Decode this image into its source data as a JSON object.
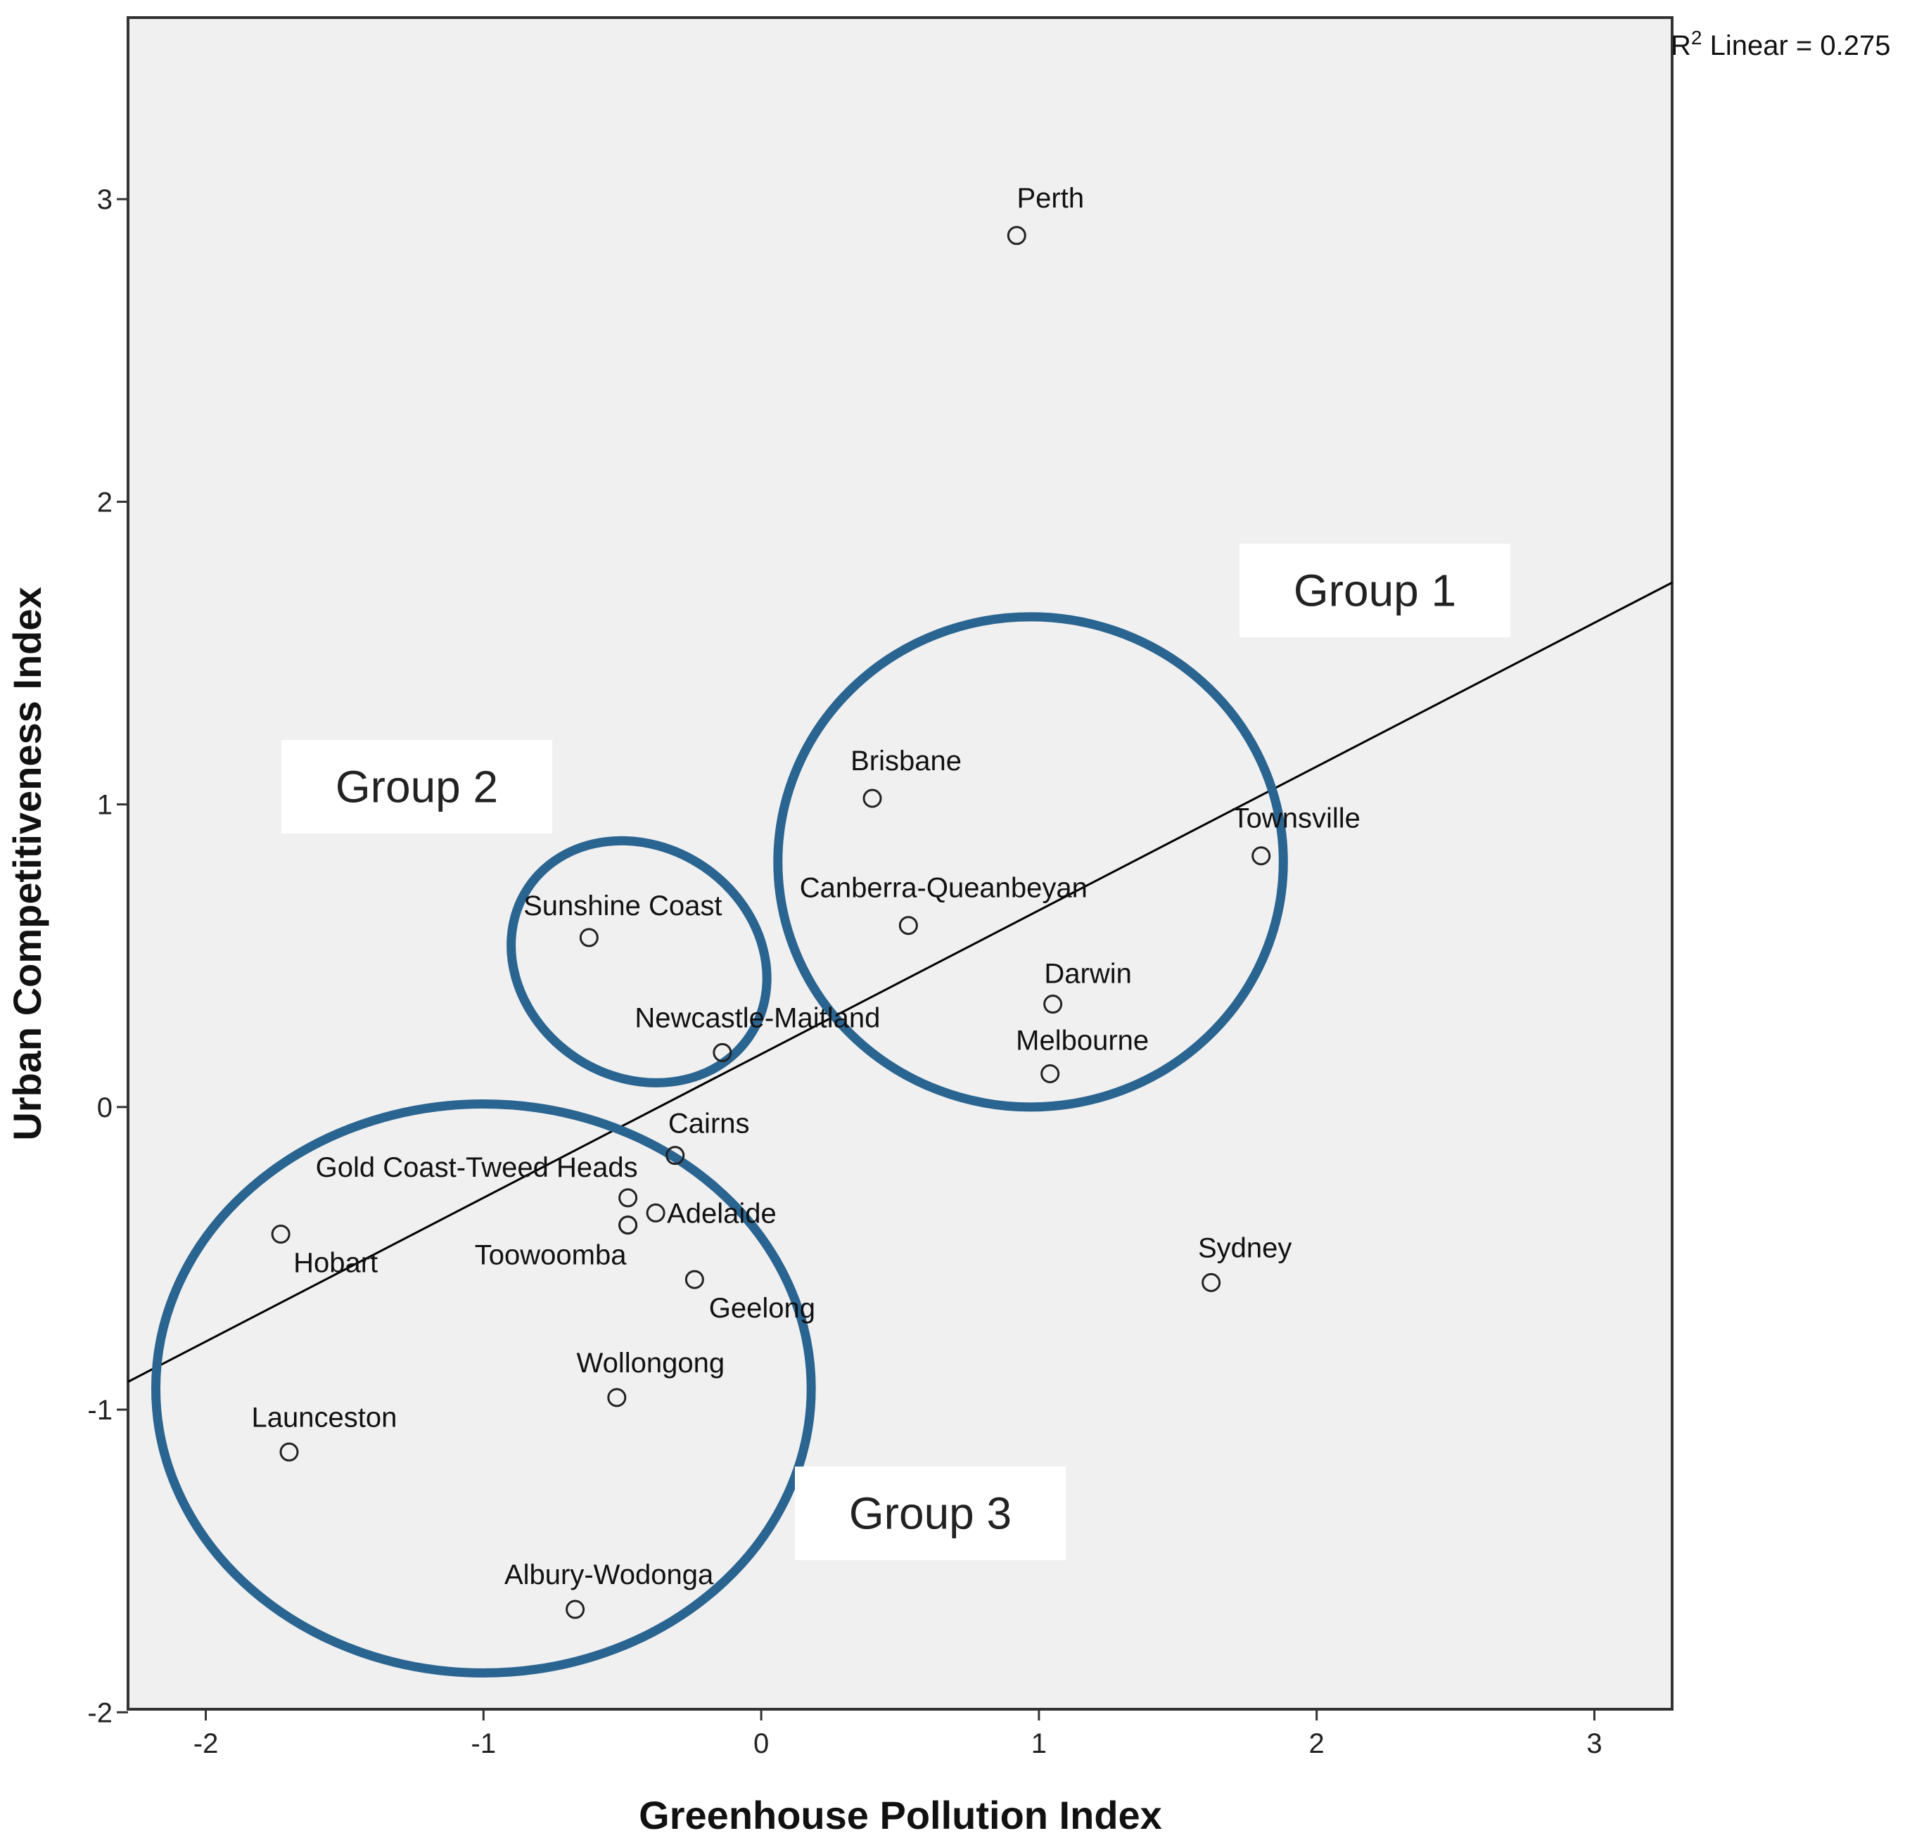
{
  "chart_data": {
    "type": "scatter",
    "xlabel": "Greenhouse Pollution Index",
    "ylabel": "Urban Competitiveness Index",
    "xlim": [
      -2.28,
      3.28
    ],
    "ylim": [
      -1.99,
      3.6
    ],
    "xticks": [
      -2,
      -1,
      0,
      1,
      2,
      3
    ],
    "yticks": [
      -2,
      -1,
      0,
      1,
      2,
      3
    ],
    "grid": false,
    "colors": {
      "plot_bg": "#f0f0f0",
      "group_ellipse": "#2a6490",
      "fit_line": "#000000",
      "marker": "#222222"
    },
    "r2_label": {
      "prefix": "R",
      "sup": "2",
      "text": " Linear = 0.275"
    },
    "fit_line": {
      "intercept": 0.175,
      "slope": 0.475
    },
    "points": [
      {
        "name": "Perth",
        "x": 0.92,
        "y": 2.88
      },
      {
        "name": "Brisbane",
        "x": 0.4,
        "y": 1.02
      },
      {
        "name": "Townsville",
        "x": 1.8,
        "y": 0.83
      },
      {
        "name": "Canberra-Queanbeyan",
        "x": 0.53,
        "y": 0.6
      },
      {
        "name": "Darwin",
        "x": 1.05,
        "y": 0.34
      },
      {
        "name": "Melbourne",
        "x": 1.04,
        "y": 0.11
      },
      {
        "name": "Sunshine Coast",
        "x": -0.62,
        "y": 0.56
      },
      {
        "name": "Newcastle-Maitland",
        "x": -0.14,
        "y": 0.18
      },
      {
        "name": "Cairns",
        "x": -0.31,
        "y": -0.16
      },
      {
        "name": "Gold Coast-Tweed Heads",
        "x": -0.48,
        "y": -0.3
      },
      {
        "name": "",
        "x": -0.48,
        "y": -0.39
      },
      {
        "name": "Adelaide",
        "x": -0.38,
        "y": -0.35
      },
      {
        "name": "Hobart",
        "x": -1.73,
        "y": -0.42
      },
      {
        "name": "Toowoomba",
        "x": -0.48,
        "y": -0.39
      },
      {
        "name": "Geelong",
        "x": -0.24,
        "y": -0.57
      },
      {
        "name": "Sydney",
        "x": 1.62,
        "y": -0.58
      },
      {
        "name": "Wollongong",
        "x": -0.52,
        "y": -0.96
      },
      {
        "name": "Launceston",
        "x": -1.7,
        "y": -1.14
      },
      {
        "name": "Albury-Wodonga",
        "x": -0.67,
        "y": -1.66
      }
    ],
    "annotations": [
      {
        "text": "Group 1"
      },
      {
        "text": "Group 2"
      },
      {
        "text": "Group 3"
      }
    ]
  }
}
